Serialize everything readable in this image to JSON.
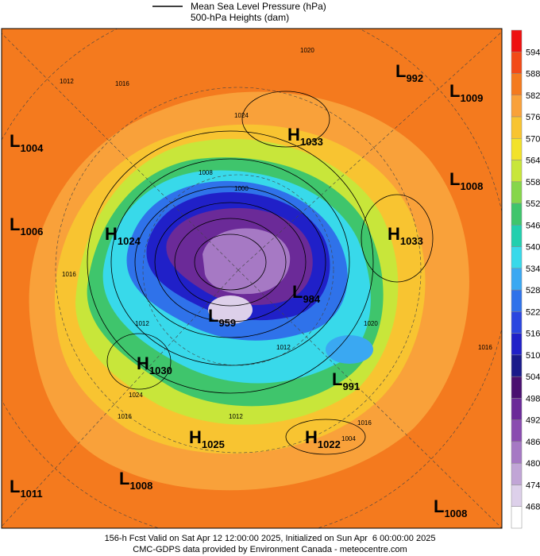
{
  "header": {
    "legend_line_1": "Mean Sea Level Pressure (hPa)",
    "legend_line_2": "500-hPa Heights (dam)"
  },
  "colorbar": {
    "labels": [
      594,
      588,
      582,
      576,
      570,
      564,
      558,
      552,
      546,
      540,
      534,
      528,
      522,
      516,
      510,
      504,
      498,
      492,
      486,
      480,
      474,
      468
    ],
    "colors": [
      "#ee1111",
      "#f24a18",
      "#f47a1e",
      "#f9a13a",
      "#f8c431",
      "#f2e22a",
      "#c8e63a",
      "#86d64a",
      "#3fc56c",
      "#22cfae",
      "#38d9ea",
      "#3aa8f2",
      "#2f72ea",
      "#2a46e0",
      "#2020c8",
      "#1a1a8a",
      "#4a1070",
      "#6b2a98",
      "#8a4cb0",
      "#a679c4",
      "#c1a5d6",
      "#ddd0ea",
      "#ffffff"
    ]
  },
  "centers": [
    {
      "type": "L",
      "value": "1004"
    },
    {
      "type": "L",
      "value": "1006"
    },
    {
      "type": "H",
      "value": "1024"
    },
    {
      "type": "H",
      "value": "1030"
    },
    {
      "type": "L",
      "value": "1011"
    },
    {
      "type": "L",
      "value": "1008"
    },
    {
      "type": "H",
      "value": "1025"
    },
    {
      "type": "H",
      "value": "1022"
    },
    {
      "type": "L",
      "value": "991"
    },
    {
      "type": "L",
      "value": "959"
    },
    {
      "type": "L",
      "value": "984"
    },
    {
      "type": "H",
      "value": "1033"
    },
    {
      "type": "L",
      "value": "992"
    },
    {
      "type": "L",
      "value": "1009"
    },
    {
      "type": "L",
      "value": "1008"
    },
    {
      "type": "H",
      "value": "1033"
    },
    {
      "type": "L",
      "value": "1008"
    }
  ],
  "isobar_labels": [
    "1012",
    "1016",
    "1020",
    "1024",
    "1016",
    "1012",
    "1016",
    "1024",
    "1020",
    "1016",
    "1012",
    "1016",
    "1008",
    "1000",
    "1012",
    "1004"
  ],
  "footer": {
    "line_1": "156-h Fcst Valid on Sat Apr 12 12:00:00 2025, Initialized on Sun Apr  6 00:00:00 2025",
    "line_2": "CMC-GDPS data provided by Environment Canada - meteocentre.com"
  }
}
